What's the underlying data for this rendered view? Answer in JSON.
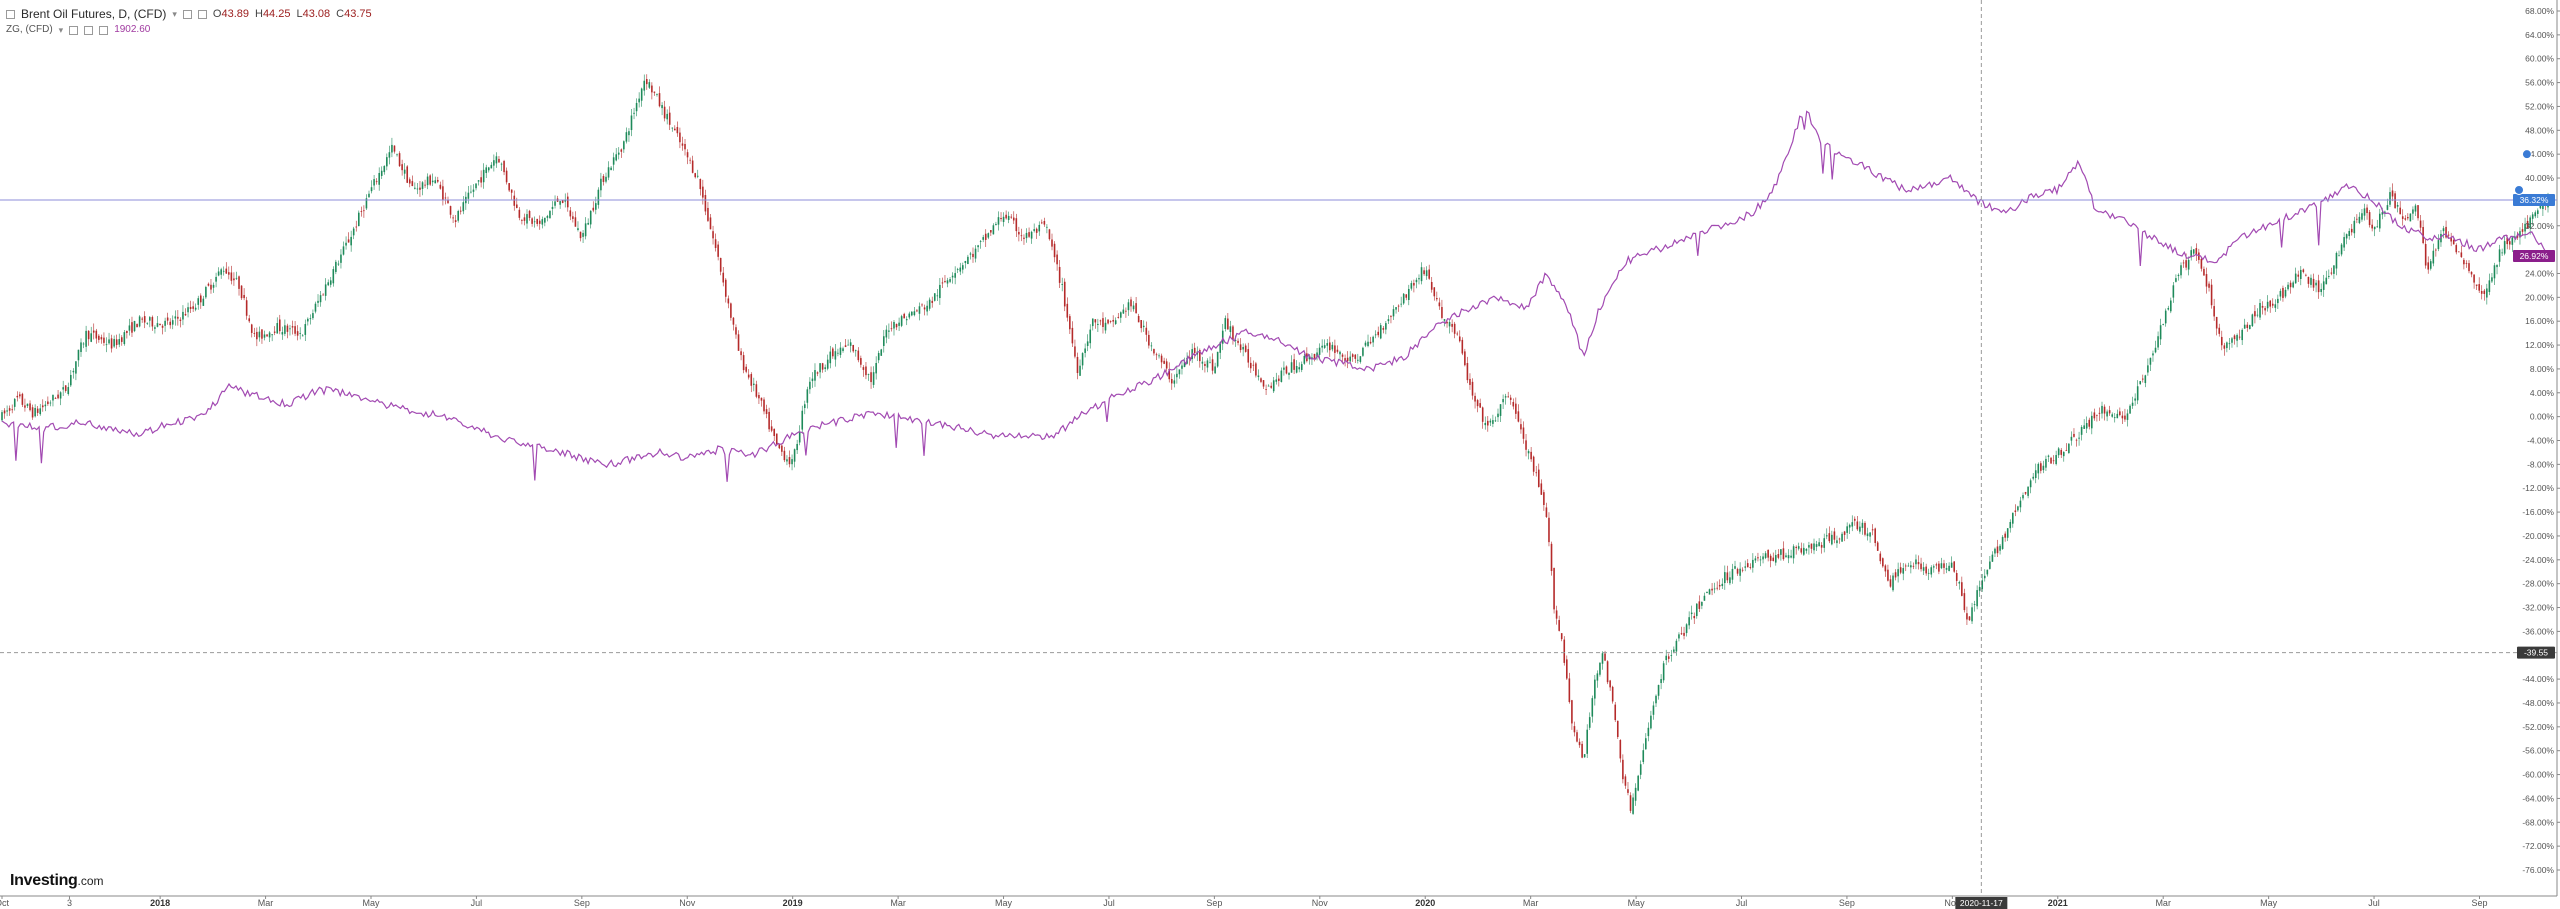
{
  "header": {
    "title": "Brent Oil Futures, D, (CFD)",
    "ohlc": [
      {
        "label": "O",
        "value": "43.89"
      },
      {
        "label": "H",
        "value": "44.25"
      },
      {
        "label": "L",
        "value": "43.08"
      },
      {
        "label": "C",
        "value": "43.75"
      }
    ],
    "compare_symbol": "ZG, (CFD)",
    "compare_value": "1902.60"
  },
  "logo": {
    "brand": "Investing",
    "suffix": ".com"
  },
  "colors": {
    "up": "#1e8a5a",
    "down": "#b52a2a",
    "line": "#a24ab2",
    "hline": "#8c8cd8",
    "crosshair": "#9a9a9a",
    "axis": "#555555",
    "badge_blue": "#3a7bd5",
    "badge_purple": "#8b1e8b",
    "badge_dark": "#3a3a3a"
  },
  "chart_data": {
    "type": "line",
    "scale": "percent",
    "ylim": [
      -76,
      68
    ],
    "yticks": [
      {
        "value": 68,
        "label": "68.00%"
      },
      {
        "value": 64,
        "label": "64.00%"
      },
      {
        "value": 60,
        "label": "60.00%"
      },
      {
        "value": 56,
        "label": "56.00%"
      },
      {
        "value": 52,
        "label": "52.00%"
      },
      {
        "value": 48,
        "label": "48.00%"
      },
      {
        "value": 44,
        "label": "44.00%"
      },
      {
        "value": 40,
        "label": "40.00%"
      },
      {
        "value": 32,
        "label": "32.00%"
      },
      {
        "value": 24,
        "label": "24.00%"
      },
      {
        "value": 20,
        "label": "20.00%"
      },
      {
        "value": 16,
        "label": "16.00%"
      },
      {
        "value": 12,
        "label": "12.00%"
      },
      {
        "value": 8,
        "label": "8.00%"
      },
      {
        "value": 4,
        "label": "4.00%"
      },
      {
        "value": 0,
        "label": "0.00%"
      },
      {
        "value": -4,
        "label": "-4.00%"
      },
      {
        "value": -8,
        "label": "-8.00%"
      },
      {
        "value": -12,
        "label": "-12.00%"
      },
      {
        "value": -16,
        "label": "-16.00%"
      },
      {
        "value": -20,
        "label": "-20.00%"
      },
      {
        "value": -24,
        "label": "-24.00%"
      },
      {
        "value": -28,
        "label": "-28.00%"
      },
      {
        "value": -32,
        "label": "-32.00%"
      },
      {
        "value": -36,
        "label": "-36.00%"
      },
      {
        "value": -44,
        "label": "-44.00%"
      },
      {
        "value": -48,
        "label": "-48.00%"
      },
      {
        "value": -52,
        "label": "-52.00%"
      },
      {
        "value": -56,
        "label": "-56.00%"
      },
      {
        "value": -60,
        "label": "-60.00%"
      },
      {
        "value": -64,
        "label": "-64.00%"
      },
      {
        "value": -68,
        "label": "-68.00%"
      },
      {
        "value": -72,
        "label": "-72.00%"
      },
      {
        "value": -76,
        "label": "-76.00%"
      }
    ],
    "xticks": [
      {
        "t": 0.0,
        "label": "Oct"
      },
      {
        "t": 1.28,
        "label": "3"
      },
      {
        "t": 3.0,
        "label": "2018"
      },
      {
        "t": 5.0,
        "label": "Mar"
      },
      {
        "t": 7.0,
        "label": "May"
      },
      {
        "t": 9.0,
        "label": "Jul"
      },
      {
        "t": 11.0,
        "label": "Sep"
      },
      {
        "t": 13.0,
        "label": "Nov"
      },
      {
        "t": 15.0,
        "label": "2019"
      },
      {
        "t": 17.0,
        "label": "Mar"
      },
      {
        "t": 19.0,
        "label": "May"
      },
      {
        "t": 21.0,
        "label": "Jul"
      },
      {
        "t": 23.0,
        "label": "Sep"
      },
      {
        "t": 25.0,
        "label": "Nov"
      },
      {
        "t": 27.0,
        "label": "2020"
      },
      {
        "t": 29.0,
        "label": "Mar"
      },
      {
        "t": 31.0,
        "label": "May"
      },
      {
        "t": 33.0,
        "label": "Jul"
      },
      {
        "t": 35.0,
        "label": "Sep"
      },
      {
        "t": 37.0,
        "label": "Nov"
      },
      {
        "t": 39.0,
        "label": "2021"
      },
      {
        "t": 41.0,
        "label": "Mar"
      },
      {
        "t": 43.0,
        "label": "May"
      },
      {
        "t": 45.0,
        "label": "Jul"
      },
      {
        "t": 47.0,
        "label": "Sep"
      }
    ],
    "crosshair": {
      "t": 37.55,
      "value": -39.55,
      "x_label": "2020-11-17",
      "y_label": "-39.55"
    },
    "hline": {
      "value": 36.32
    },
    "last_values": [
      {
        "series": "Brent Oil Futures, D, (CFD)",
        "value": 36.32,
        "label": "36.32%"
      },
      {
        "series": "ZG, (CFD)",
        "value": 26.92,
        "label": "26.92%"
      }
    ],
    "series": [
      {
        "name": "Brent Oil Futures, D, (CFD)",
        "kind": "candlestick",
        "anchors": [
          [
            0.0,
            0.0
          ],
          [
            0.3,
            3.0
          ],
          [
            0.6,
            0.5
          ],
          [
            1.2,
            4.5
          ],
          [
            1.6,
            14.0
          ],
          [
            2.1,
            12.0
          ],
          [
            2.6,
            16.0
          ],
          [
            3.2,
            15.5
          ],
          [
            3.7,
            19.0
          ],
          [
            4.2,
            25.0
          ],
          [
            4.5,
            22.0
          ],
          [
            4.8,
            13.0
          ],
          [
            5.2,
            15.0
          ],
          [
            5.7,
            14.0
          ],
          [
            6.2,
            23.0
          ],
          [
            6.6,
            30.0
          ],
          [
            7.0,
            38.0
          ],
          [
            7.4,
            45.0
          ],
          [
            7.8,
            38.0
          ],
          [
            8.2,
            40.0
          ],
          [
            8.6,
            33.0
          ],
          [
            9.0,
            39.0
          ],
          [
            9.4,
            44.0
          ],
          [
            9.8,
            34.0
          ],
          [
            10.2,
            32.0
          ],
          [
            10.6,
            37.0
          ],
          [
            11.0,
            30.0
          ],
          [
            11.4,
            40.0
          ],
          [
            11.8,
            46.0
          ],
          [
            12.2,
            57.0
          ],
          [
            12.5,
            52.0
          ],
          [
            12.8,
            47.0
          ],
          [
            13.2,
            40.0
          ],
          [
            13.6,
            26.0
          ],
          [
            14.0,
            10.0
          ],
          [
            14.4,
            2.0
          ],
          [
            14.7,
            -5.0
          ],
          [
            15.0,
            -8.0
          ],
          [
            15.3,
            6.0
          ],
          [
            15.7,
            10.0
          ],
          [
            16.1,
            12.0
          ],
          [
            16.5,
            6.0
          ],
          [
            16.8,
            15.0
          ],
          [
            17.2,
            17.0
          ],
          [
            17.6,
            19.0
          ],
          [
            18.0,
            24.0
          ],
          [
            18.5,
            28.0
          ],
          [
            19.0,
            34.0
          ],
          [
            19.4,
            30.0
          ],
          [
            19.8,
            32.0
          ],
          [
            20.1,
            22.0
          ],
          [
            20.4,
            8.0
          ],
          [
            20.7,
            16.0
          ],
          [
            21.0,
            15.0
          ],
          [
            21.4,
            19.0
          ],
          [
            21.8,
            12.0
          ],
          [
            22.2,
            6.0
          ],
          [
            22.6,
            11.0
          ],
          [
            23.0,
            8.0
          ],
          [
            23.2,
            16.0
          ],
          [
            23.6,
            10.0
          ],
          [
            24.0,
            5.0
          ],
          [
            24.4,
            8.0
          ],
          [
            24.8,
            10.0
          ],
          [
            25.2,
            12.0
          ],
          [
            25.6,
            9.0
          ],
          [
            26.0,
            13.0
          ],
          [
            26.5,
            19.0
          ],
          [
            27.0,
            25.0
          ],
          [
            27.3,
            17.0
          ],
          [
            27.6,
            14.0
          ],
          [
            27.9,
            3.0
          ],
          [
            28.2,
            -2.0
          ],
          [
            28.6,
            4.0
          ],
          [
            28.9,
            -5.0
          ],
          [
            29.1,
            -10.0
          ],
          [
            29.3,
            -17.0
          ],
          [
            29.45,
            -32.0
          ],
          [
            29.6,
            -38.0
          ],
          [
            29.8,
            -52.0
          ],
          [
            30.0,
            -58.0
          ],
          [
            30.2,
            -45.0
          ],
          [
            30.35,
            -39.0
          ],
          [
            30.55,
            -48.0
          ],
          [
            30.75,
            -60.0
          ],
          [
            30.9,
            -66.0
          ],
          [
            31.1,
            -58.0
          ],
          [
            31.35,
            -47.0
          ],
          [
            31.6,
            -40.0
          ],
          [
            31.9,
            -36.0
          ],
          [
            32.3,
            -30.0
          ],
          [
            32.8,
            -26.0
          ],
          [
            33.3,
            -24.0
          ],
          [
            33.8,
            -23.0
          ],
          [
            34.3,
            -22.0
          ],
          [
            34.8,
            -20.0
          ],
          [
            35.2,
            -18.0
          ],
          [
            35.5,
            -20.0
          ],
          [
            35.8,
            -28.0
          ],
          [
            36.2,
            -24.0
          ],
          [
            36.6,
            -26.0
          ],
          [
            37.0,
            -24.0
          ],
          [
            37.3,
            -34.0
          ],
          [
            37.55,
            -28.0
          ],
          [
            37.8,
            -23.0
          ],
          [
            38.2,
            -16.0
          ],
          [
            38.6,
            -9.0
          ],
          [
            39.0,
            -6.0
          ],
          [
            39.4,
            -3.0
          ],
          [
            39.8,
            1.0
          ],
          [
            40.3,
            0.0
          ],
          [
            40.7,
            8.0
          ],
          [
            41.0,
            16.0
          ],
          [
            41.3,
            24.0
          ],
          [
            41.6,
            28.0
          ],
          [
            41.9,
            20.0
          ],
          [
            42.1,
            12.0
          ],
          [
            42.4,
            13.0
          ],
          [
            42.8,
            18.0
          ],
          [
            43.2,
            20.0
          ],
          [
            43.6,
            24.0
          ],
          [
            44.0,
            21.0
          ],
          [
            44.4,
            29.0
          ],
          [
            44.8,
            35.0
          ],
          [
            45.0,
            31.0
          ],
          [
            45.3,
            37.0
          ],
          [
            45.6,
            33.0
          ],
          [
            45.8,
            35.0
          ],
          [
            46.0,
            25.0
          ],
          [
            46.3,
            31.0
          ],
          [
            46.6,
            28.0
          ],
          [
            46.9,
            23.0
          ],
          [
            47.1,
            20.0
          ],
          [
            47.4,
            28.0
          ],
          [
            47.8,
            31.0
          ],
          [
            48.0,
            33.0
          ],
          [
            48.3,
            36.3
          ]
        ]
      },
      {
        "name": "ZG, (CFD)",
        "kind": "line",
        "anchors": [
          [
            0.0,
            -1.0
          ],
          [
            0.8,
            -2.0
          ],
          [
            1.5,
            -1.0
          ],
          [
            2.2,
            -2.0
          ],
          [
            2.6,
            -3.0
          ],
          [
            3.2,
            -1.0
          ],
          [
            3.8,
            0.0
          ],
          [
            4.3,
            5.0
          ],
          [
            4.8,
            3.5
          ],
          [
            5.4,
            2.0
          ],
          [
            6.0,
            4.5
          ],
          [
            6.6,
            4.0
          ],
          [
            7.2,
            2.0
          ],
          [
            7.8,
            1.0
          ],
          [
            8.4,
            0.0
          ],
          [
            9.0,
            -2.0
          ],
          [
            9.6,
            -4.0
          ],
          [
            10.2,
            -5.0
          ],
          [
            10.6,
            -6.0
          ],
          [
            11.0,
            -7.0
          ],
          [
            11.5,
            -8.0
          ],
          [
            12.0,
            -7.0
          ],
          [
            12.5,
            -6.0
          ],
          [
            13.0,
            -7.0
          ],
          [
            13.6,
            -5.5
          ],
          [
            14.2,
            -6.5
          ],
          [
            14.8,
            -4.0
          ],
          [
            15.3,
            -2.0
          ],
          [
            15.8,
            -1.0
          ],
          [
            16.4,
            0.5
          ],
          [
            17.0,
            0.0
          ],
          [
            17.6,
            -1.0
          ],
          [
            18.2,
            -2.0
          ],
          [
            18.8,
            -3.0
          ],
          [
            19.4,
            -3.5
          ],
          [
            20.0,
            -3.0
          ],
          [
            20.6,
            1.0
          ],
          [
            21.2,
            4.0
          ],
          [
            21.8,
            6.0
          ],
          [
            22.4,
            9.0
          ],
          [
            23.0,
            12.0
          ],
          [
            23.6,
            14.0
          ],
          [
            24.2,
            13.0
          ],
          [
            24.8,
            10.0
          ],
          [
            25.4,
            9.0
          ],
          [
            26.0,
            8.0
          ],
          [
            26.6,
            10.0
          ],
          [
            27.2,
            15.0
          ],
          [
            27.8,
            18.0
          ],
          [
            28.4,
            20.0
          ],
          [
            28.9,
            18.0
          ],
          [
            29.3,
            24.0
          ],
          [
            29.7,
            18.0
          ],
          [
            30.0,
            10.0
          ],
          [
            30.3,
            18.0
          ],
          [
            30.8,
            26.0
          ],
          [
            31.4,
            28.0
          ],
          [
            32.0,
            30.0
          ],
          [
            32.6,
            32.0
          ],
          [
            33.2,
            34.0
          ],
          [
            33.6,
            38.0
          ],
          [
            33.9,
            45.0
          ],
          [
            34.2,
            52.0
          ],
          [
            34.5,
            46.0
          ],
          [
            34.9,
            44.0
          ],
          [
            35.3,
            42.0
          ],
          [
            35.7,
            40.0
          ],
          [
            36.1,
            38.0
          ],
          [
            36.6,
            39.0
          ],
          [
            37.0,
            40.0
          ],
          [
            37.5,
            36.0
          ],
          [
            38.0,
            34.0
          ],
          [
            38.5,
            37.0
          ],
          [
            39.0,
            38.0
          ],
          [
            39.4,
            43.0
          ],
          [
            39.7,
            35.0
          ],
          [
            40.2,
            33.0
          ],
          [
            40.8,
            30.0
          ],
          [
            41.4,
            27.0
          ],
          [
            42.0,
            26.0
          ],
          [
            42.5,
            30.0
          ],
          [
            43.0,
            32.0
          ],
          [
            43.5,
            34.0
          ],
          [
            44.0,
            36.0
          ],
          [
            44.5,
            39.0
          ],
          [
            45.0,
            36.0
          ],
          [
            45.5,
            32.0
          ],
          [
            46.0,
            30.0
          ],
          [
            46.5,
            30.0
          ],
          [
            47.0,
            28.0
          ],
          [
            47.5,
            30.0
          ],
          [
            48.0,
            31.0
          ],
          [
            48.3,
            26.92
          ]
        ]
      }
    ]
  }
}
